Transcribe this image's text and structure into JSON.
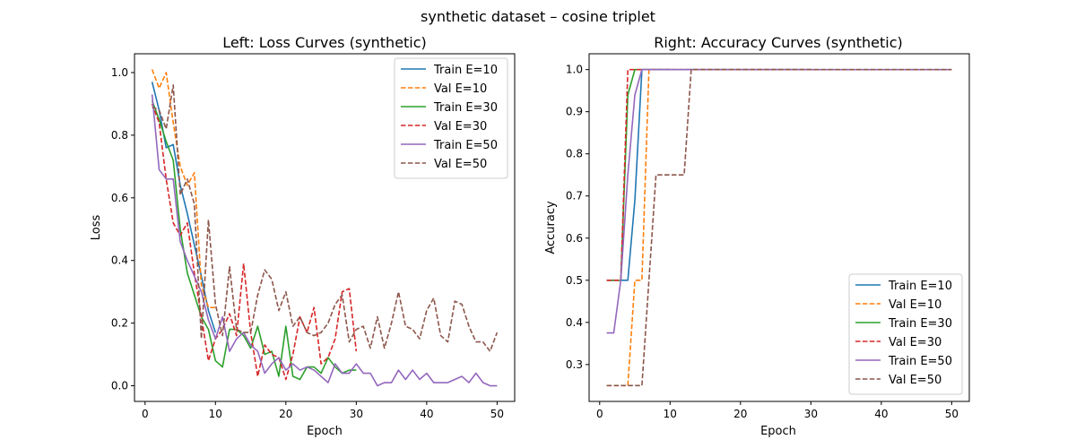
{
  "figure": {
    "suptitle": "synthetic dataset – cosine triplet"
  },
  "chart_data": [
    {
      "type": "line",
      "title": "Left: Loss Curves (synthetic)",
      "xlabel": "Epoch",
      "ylabel": "Loss",
      "xlim": [
        -1.5,
        52.5
      ],
      "ylim": [
        -0.05,
        1.06
      ],
      "xticks": [
        0,
        10,
        20,
        30,
        40,
        50
      ],
      "yticks": [
        0.0,
        0.2,
        0.4,
        0.6,
        0.8,
        1.0
      ],
      "ytick_format": 1,
      "legend": "top-right",
      "grid": false,
      "series": [
        {
          "name": "Train E=10",
          "color": "#1f77b4",
          "dash": "solid",
          "x": [
            1,
            2,
            3,
            4,
            5,
            6,
            7,
            8,
            9,
            10
          ],
          "y": [
            0.97,
            0.88,
            0.76,
            0.77,
            0.64,
            0.55,
            0.45,
            0.35,
            0.24,
            0.17
          ]
        },
        {
          "name": "Val E=10",
          "color": "#ff7f0e",
          "dash": "dashed",
          "x": [
            1,
            2,
            3,
            4,
            5,
            6,
            7,
            8,
            9,
            10
          ],
          "y": [
            1.01,
            0.95,
            1.0,
            0.84,
            0.7,
            0.64,
            0.68,
            0.32,
            0.25,
            0.25
          ]
        },
        {
          "name": "Train E=30",
          "color": "#2ca02c",
          "dash": "solid",
          "x": [
            1,
            2,
            3,
            4,
            5,
            6,
            7,
            8,
            9,
            10,
            11,
            12,
            13,
            14,
            15,
            16,
            17,
            18,
            19,
            20,
            21,
            22,
            23,
            24,
            25,
            26,
            27,
            28,
            29,
            30
          ],
          "y": [
            0.91,
            0.85,
            0.78,
            0.72,
            0.5,
            0.36,
            0.29,
            0.22,
            0.18,
            0.08,
            0.06,
            0.18,
            0.18,
            0.16,
            0.12,
            0.19,
            0.1,
            0.11,
            0.03,
            0.19,
            0.03,
            0.02,
            0.06,
            0.06,
            0.04,
            0.09,
            0.06,
            0.04,
            0.05,
            0.05
          ]
        },
        {
          "name": "Val E=30",
          "color": "#d62728",
          "dash": "dashed",
          "x": [
            1,
            2,
            3,
            4,
            5,
            6,
            7,
            8,
            9,
            10,
            11,
            12,
            13,
            14,
            15,
            16,
            17,
            18,
            19,
            20,
            21,
            22,
            23,
            24,
            25,
            26,
            27,
            28,
            29,
            30
          ],
          "y": [
            0.9,
            0.84,
            0.66,
            0.52,
            0.48,
            0.52,
            0.36,
            0.22,
            0.08,
            0.15,
            0.18,
            0.23,
            0.16,
            0.39,
            0.17,
            0.03,
            0.13,
            0.1,
            0.09,
            0.02,
            0.1,
            0.22,
            0.17,
            0.25,
            0.07,
            0.09,
            0.15,
            0.3,
            0.31,
            0.11
          ]
        },
        {
          "name": "Train E=50",
          "color": "#9467bd",
          "dash": "solid",
          "x": [
            1,
            2,
            3,
            4,
            5,
            6,
            7,
            8,
            9,
            10,
            11,
            12,
            13,
            14,
            15,
            16,
            17,
            18,
            19,
            20,
            21,
            22,
            23,
            24,
            25,
            26,
            27,
            28,
            29,
            30,
            31,
            32,
            33,
            34,
            35,
            36,
            37,
            38,
            39,
            40,
            41,
            42,
            43,
            44,
            45,
            46,
            47,
            48,
            49,
            50
          ],
          "y": [
            0.93,
            0.69,
            0.66,
            0.66,
            0.46,
            0.4,
            0.35,
            0.3,
            0.21,
            0.15,
            0.22,
            0.11,
            0.15,
            0.17,
            0.13,
            0.11,
            0.04,
            0.07,
            0.09,
            0.05,
            0.07,
            0.05,
            0.06,
            0.05,
            0.03,
            0.01,
            0.07,
            0.04,
            0.04,
            0.07,
            0.04,
            0.04,
            0.0,
            0.01,
            0.01,
            0.05,
            0.02,
            0.05,
            0.02,
            0.04,
            0.01,
            0.01,
            0.01,
            0.02,
            0.03,
            0.01,
            0.04,
            0.01,
            0.0,
            0.0
          ]
        },
        {
          "name": "Val E=50",
          "color": "#8c564b",
          "dash": "dashed",
          "x": [
            1,
            2,
            3,
            4,
            5,
            6,
            7,
            8,
            9,
            10,
            11,
            12,
            13,
            14,
            15,
            16,
            17,
            18,
            19,
            20,
            21,
            22,
            23,
            24,
            25,
            26,
            27,
            28,
            29,
            30,
            31,
            32,
            33,
            34,
            35,
            36,
            37,
            38,
            39,
            40,
            41,
            42,
            43,
            44,
            45,
            46,
            47,
            48,
            49,
            50
          ],
          "y": [
            0.89,
            0.88,
            0.82,
            0.96,
            0.61,
            0.66,
            0.58,
            0.15,
            0.53,
            0.26,
            0.16,
            0.38,
            0.18,
            0.17,
            0.17,
            0.29,
            0.37,
            0.34,
            0.24,
            0.3,
            0.19,
            0.22,
            0.17,
            0.16,
            0.17,
            0.2,
            0.26,
            0.29,
            0.14,
            0.18,
            0.19,
            0.12,
            0.22,
            0.12,
            0.2,
            0.3,
            0.19,
            0.18,
            0.15,
            0.24,
            0.28,
            0.16,
            0.14,
            0.27,
            0.26,
            0.19,
            0.14,
            0.14,
            0.11,
            0.17
          ]
        }
      ]
    },
    {
      "type": "line",
      "title": "Right: Accuracy Curves (synthetic)",
      "xlabel": "Epoch",
      "ylabel": "Accuracy",
      "xlim": [
        -1.5,
        52.5
      ],
      "ylim": [
        0.2125,
        1.0375
      ],
      "xticks": [
        0,
        10,
        20,
        30,
        40,
        50
      ],
      "yticks": [
        0.3,
        0.4,
        0.5,
        0.6,
        0.7,
        0.8,
        0.9,
        1.0
      ],
      "ytick_format": 1,
      "legend": "bottom-right",
      "grid": false,
      "series": [
        {
          "name": "Train E=10",
          "color": "#1f77b4",
          "dash": "solid",
          "x": [
            1,
            2,
            3,
            4,
            5,
            6,
            7,
            8,
            9,
            10
          ],
          "y": [
            0.5,
            0.5,
            0.5,
            0.5,
            0.69,
            1.0,
            1.0,
            1.0,
            1.0,
            1.0
          ]
        },
        {
          "name": "Val E=10",
          "color": "#ff7f0e",
          "dash": "dashed",
          "x": [
            1,
            2,
            3,
            4,
            5,
            6,
            7,
            8,
            9,
            10
          ],
          "y": [
            0.25,
            0.25,
            0.25,
            0.25,
            0.5,
            0.5,
            1.0,
            1.0,
            1.0,
            1.0
          ]
        },
        {
          "name": "Train E=30",
          "color": "#2ca02c",
          "dash": "solid",
          "x": [
            1,
            2,
            3,
            4,
            5,
            6,
            7,
            8,
            9,
            10,
            11,
            12,
            13,
            14,
            15,
            16,
            17,
            18,
            19,
            20,
            21,
            22,
            23,
            24,
            25,
            26,
            27,
            28,
            29,
            30
          ],
          "y": [
            0.5,
            0.5,
            0.5,
            0.94,
            1.0,
            1.0,
            1.0,
            1.0,
            1.0,
            1.0,
            1.0,
            1.0,
            1.0,
            1.0,
            1.0,
            1.0,
            1.0,
            1.0,
            1.0,
            1.0,
            1.0,
            1.0,
            1.0,
            1.0,
            1.0,
            1.0,
            1.0,
            1.0,
            1.0,
            1.0
          ]
        },
        {
          "name": "Val E=30",
          "color": "#d62728",
          "dash": "dashed",
          "x": [
            1,
            2,
            3,
            4,
            5,
            6,
            7,
            8,
            9,
            10,
            11,
            12,
            13,
            14,
            15,
            16,
            17,
            18,
            19,
            20,
            21,
            22,
            23,
            24,
            25,
            26,
            27,
            28,
            29,
            30
          ],
          "y": [
            0.5,
            0.5,
            0.5,
            1.0,
            1.0,
            1.0,
            1.0,
            1.0,
            1.0,
            1.0,
            1.0,
            1.0,
            1.0,
            1.0,
            1.0,
            1.0,
            1.0,
            1.0,
            1.0,
            1.0,
            1.0,
            1.0,
            1.0,
            1.0,
            1.0,
            1.0,
            1.0,
            1.0,
            1.0,
            1.0
          ]
        },
        {
          "name": "Train E=50",
          "color": "#9467bd",
          "dash": "solid",
          "x": [
            1,
            2,
            3,
            4,
            5,
            6,
            7,
            8,
            9,
            10,
            11,
            12,
            13,
            14,
            15,
            16,
            17,
            18,
            19,
            20,
            21,
            22,
            23,
            24,
            25,
            26,
            27,
            28,
            29,
            30,
            31,
            32,
            33,
            34,
            35,
            36,
            37,
            38,
            39,
            40,
            41,
            42,
            43,
            44,
            45,
            46,
            47,
            48,
            49,
            50
          ],
          "y": [
            0.375,
            0.375,
            0.5,
            0.75,
            0.94,
            1.0,
            1.0,
            1.0,
            1.0,
            1.0,
            1.0,
            1.0,
            1.0,
            1.0,
            1.0,
            1.0,
            1.0,
            1.0,
            1.0,
            1.0,
            1.0,
            1.0,
            1.0,
            1.0,
            1.0,
            1.0,
            1.0,
            1.0,
            1.0,
            1.0,
            1.0,
            1.0,
            1.0,
            1.0,
            1.0,
            1.0,
            1.0,
            1.0,
            1.0,
            1.0,
            1.0,
            1.0,
            1.0,
            1.0,
            1.0,
            1.0,
            1.0,
            1.0,
            1.0,
            1.0
          ]
        },
        {
          "name": "Val E=50",
          "color": "#8c564b",
          "dash": "dashed",
          "x": [
            1,
            2,
            3,
            4,
            5,
            6,
            7,
            8,
            9,
            10,
            11,
            12,
            13,
            14,
            15,
            16,
            17,
            18,
            19,
            20,
            21,
            22,
            23,
            24,
            25,
            26,
            27,
            28,
            29,
            30,
            31,
            32,
            33,
            34,
            35,
            36,
            37,
            38,
            39,
            40,
            41,
            42,
            43,
            44,
            45,
            46,
            47,
            48,
            49,
            50
          ],
          "y": [
            0.25,
            0.25,
            0.25,
            0.25,
            0.25,
            0.25,
            0.5,
            0.75,
            0.75,
            0.75,
            0.75,
            0.75,
            1.0,
            1.0,
            1.0,
            1.0,
            1.0,
            1.0,
            1.0,
            1.0,
            1.0,
            1.0,
            1.0,
            1.0,
            1.0,
            1.0,
            1.0,
            1.0,
            1.0,
            1.0,
            1.0,
            1.0,
            1.0,
            1.0,
            1.0,
            1.0,
            1.0,
            1.0,
            1.0,
            1.0,
            1.0,
            1.0,
            1.0,
            1.0,
            1.0,
            1.0,
            1.0,
            1.0,
            1.0,
            1.0
          ]
        }
      ]
    }
  ]
}
